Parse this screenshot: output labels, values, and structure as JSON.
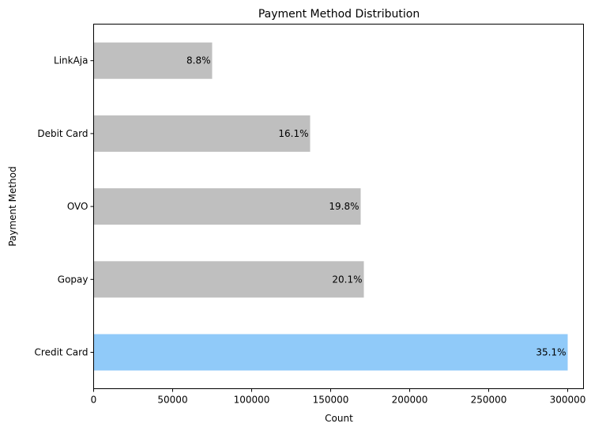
{
  "chart_data": {
    "type": "bar",
    "orientation": "horizontal",
    "title": "Payment Method Distribution",
    "xlabel": "Count",
    "ylabel": "Payment Method",
    "xlim": [
      0,
      310000
    ],
    "xticks": [
      0,
      50000,
      100000,
      150000,
      200000,
      250000,
      300000
    ],
    "categories": [
      "Credit Card",
      "Gopay",
      "OVO",
      "Debit Card",
      "LinkAja"
    ],
    "values": [
      300000,
      171000,
      169000,
      137000,
      75000
    ],
    "percent_labels": [
      "35.1%",
      "20.1%",
      "19.8%",
      "16.1%",
      "8.8%"
    ],
    "bar_colors": [
      "#90caf9",
      "#bfbfbf",
      "#bfbfbf",
      "#bfbfbf",
      "#bfbfbf"
    ],
    "grid": false,
    "legend": "none"
  }
}
